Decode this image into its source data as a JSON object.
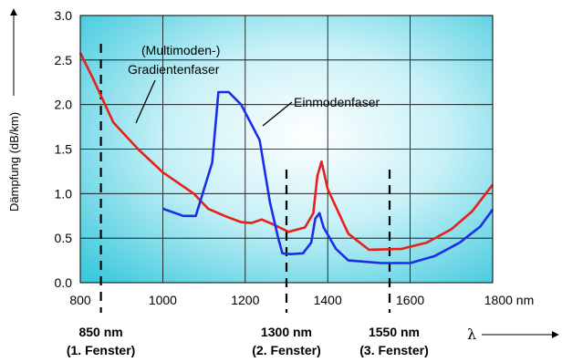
{
  "chart_data": {
    "type": "line",
    "title": "",
    "ylabel": "Dämpfung (dB/km)",
    "xlabel": "λ",
    "xlim": [
      800,
      1800
    ],
    "ylim": [
      0,
      3.0
    ],
    "x_ticks": [
      "800",
      "1000",
      "1200",
      "1400",
      "1600",
      "1800 nm"
    ],
    "y_ticks": [
      "0.0",
      "0.5",
      "1.0",
      "1.5",
      "2.0",
      "2.5",
      "3.0"
    ],
    "grid": true,
    "series": [
      {
        "name": "(Multimoden-) Gradientenfaser",
        "color": "#e8201a",
        "x": [
          800,
          830,
          880,
          940,
          1000,
          1075,
          1110,
          1150,
          1190,
          1215,
          1240,
          1270,
          1305,
          1345,
          1365,
          1375,
          1385,
          1400,
          1450,
          1500,
          1580,
          1640,
          1700,
          1750,
          1800
        ],
        "y": [
          2.58,
          2.3,
          1.8,
          1.5,
          1.24,
          1.0,
          0.83,
          0.75,
          0.68,
          0.67,
          0.71,
          0.65,
          0.57,
          0.62,
          0.78,
          1.2,
          1.36,
          1.05,
          0.55,
          0.37,
          0.38,
          0.45,
          0.6,
          0.8,
          1.1
        ]
      },
      {
        "name": "Einmodenfaser",
        "color": "#1a2ee8",
        "x": [
          1000,
          1050,
          1080,
          1120,
          1135,
          1160,
          1190,
          1235,
          1260,
          1280,
          1290,
          1310,
          1340,
          1360,
          1370,
          1380,
          1390,
          1420,
          1450,
          1530,
          1600,
          1660,
          1720,
          1770,
          1800
        ],
        "y": [
          0.83,
          0.75,
          0.75,
          1.35,
          2.14,
          2.14,
          2.0,
          1.6,
          0.9,
          0.5,
          0.33,
          0.32,
          0.33,
          0.45,
          0.72,
          0.78,
          0.62,
          0.38,
          0.25,
          0.22,
          0.22,
          0.3,
          0.45,
          0.63,
          0.82
        ]
      }
    ],
    "windows": [
      {
        "x": 850,
        "label": "850 nm",
        "sublabel": "(1. Fenster)"
      },
      {
        "x": 1300,
        "label": "1300 nm",
        "sublabel": "(2. Fenster)"
      },
      {
        "x": 1550,
        "label": "1550 nm",
        "sublabel": "(3. Fenster)"
      }
    ],
    "annotations": {
      "multimode_line1": "(Multimoden-)",
      "multimode_line2": "Gradientenfaser",
      "singlemode": "Einmodenfaser"
    }
  }
}
